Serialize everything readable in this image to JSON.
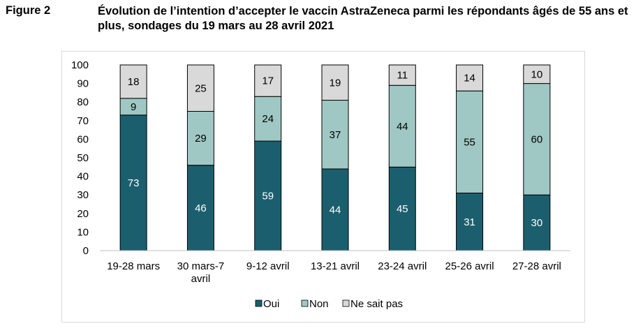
{
  "figure": {
    "label": "Figure 2",
    "title": "Évolution de l’intention d’accepter le vaccin AstraZeneca parmi les répondants âgés de 55 ans et plus, sondages du 19 mars au 28 avril 2021"
  },
  "colors": {
    "oui": "#1b5f6e",
    "non": "#9fc8c4",
    "nsp": "#d9d9d9",
    "axis": "#bfbfbf"
  },
  "chart_data": {
    "type": "bar",
    "stacked": true,
    "categories": [
      "19-28 mars",
      "30 mars-7 avril",
      "9-12 avril",
      "13-21 avril",
      "23-24 avril",
      "25-26 avril",
      "27-28 avril"
    ],
    "category_lines": [
      [
        "19-28 mars"
      ],
      [
        "30 mars-7",
        "avril"
      ],
      [
        "9-12 avril"
      ],
      [
        "13-21 avril"
      ],
      [
        "23-24 avril"
      ],
      [
        "25-26 avril"
      ],
      [
        "27-28 avril"
      ]
    ],
    "series": [
      {
        "name": "Oui",
        "values": [
          73,
          46,
          59,
          44,
          45,
          31,
          30
        ]
      },
      {
        "name": "Non",
        "values": [
          9,
          29,
          24,
          37,
          44,
          55,
          60
        ]
      },
      {
        "name": "Ne sait pas",
        "values": [
          18,
          25,
          17,
          19,
          11,
          14,
          10
        ]
      }
    ],
    "ylim": [
      0,
      100
    ],
    "yticks": [
      0,
      10,
      20,
      30,
      40,
      50,
      60,
      70,
      80,
      90,
      100
    ],
    "grid": false,
    "legend_position": "bottom"
  }
}
